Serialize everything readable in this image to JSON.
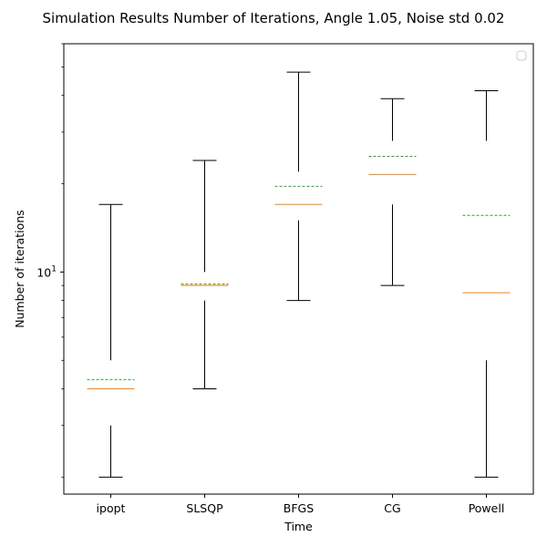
{
  "chart_data": {
    "type": "boxplot",
    "title": "Simulation Results Number of Iterations, Angle 1.05, Noise std 0.02",
    "xlabel": "Time",
    "ylabel": "Number of iterations",
    "yscale": "log",
    "ylim": [
      1.75,
      60
    ],
    "yticks": [
      {
        "value": 10,
        "base": "10",
        "exp": "1"
      }
    ],
    "legend": {
      "placement": "top-right",
      "entries": []
    },
    "grid": false,
    "categories": [
      "ipopt",
      "SLSQP",
      "BFGS",
      "CG",
      "Powell"
    ],
    "boxes": [
      {
        "category": "ipopt",
        "whisker_low": 2,
        "q1": 3,
        "median": 4,
        "mean": 4.3,
        "q3": 5,
        "whisker_high": 17
      },
      {
        "category": "SLSQP",
        "whisker_low": 4,
        "q1": 8,
        "median": 9,
        "mean": 9.1,
        "q3": 10,
        "whisker_high": 24
      },
      {
        "category": "BFGS",
        "whisker_low": 8,
        "q1": 15,
        "median": 17,
        "mean": 19.6,
        "q3": 22,
        "whisker_high": 48
      },
      {
        "category": "CG",
        "whisker_low": 9,
        "q1": 17,
        "median": 21.5,
        "mean": 24.8,
        "q3": 28,
        "whisker_high": 39
      },
      {
        "category": "Powell",
        "whisker_low": 2,
        "q1": 5,
        "median": 8.5,
        "mean": 15.6,
        "q3": 28,
        "whisker_high": 41.5
      }
    ],
    "colors": {
      "whisker": "#000000",
      "median": "#ff7f0e",
      "mean": "#2ca02c",
      "frame": "#000000"
    }
  }
}
